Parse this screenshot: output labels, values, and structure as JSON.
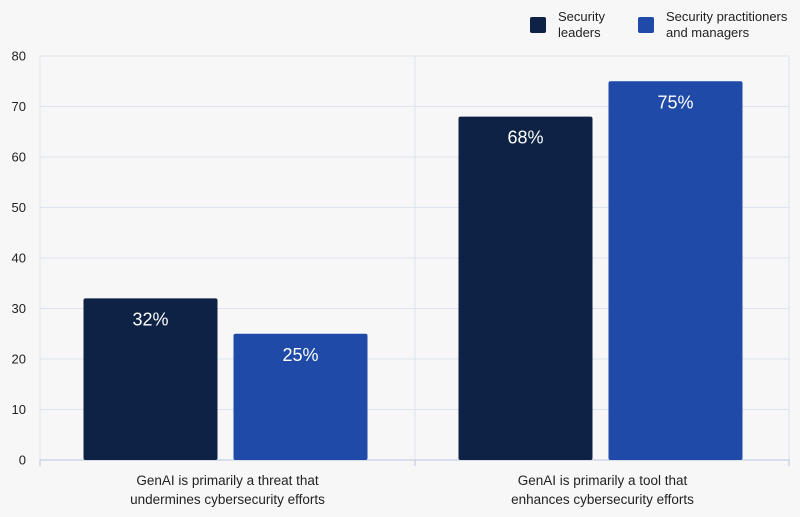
{
  "chart_data": {
    "type": "bar",
    "title": "",
    "xlabel": "",
    "ylabel": "",
    "ylim": [
      0,
      80
    ],
    "yticks": [
      0,
      10,
      20,
      30,
      40,
      50,
      60,
      70,
      80
    ],
    "grid": true,
    "legend_position": "top-right",
    "categories": [
      [
        "GenAI is primarily a threat that",
        "undermines cybersecurity efforts"
      ],
      [
        "GenAI is primarily a tool that",
        "enhances cybersecurity efforts"
      ]
    ],
    "series": [
      {
        "name_lines": [
          "Security",
          "leaders"
        ],
        "color": "#0d2244",
        "values": [
          32,
          68
        ],
        "labels": [
          "32%",
          "68%"
        ]
      },
      {
        "name_lines": [
          "Security practitioners",
          "and managers"
        ],
        "color": "#1f4aa8",
        "values": [
          25,
          75
        ],
        "labels": [
          "25%",
          "75%"
        ]
      }
    ]
  }
}
